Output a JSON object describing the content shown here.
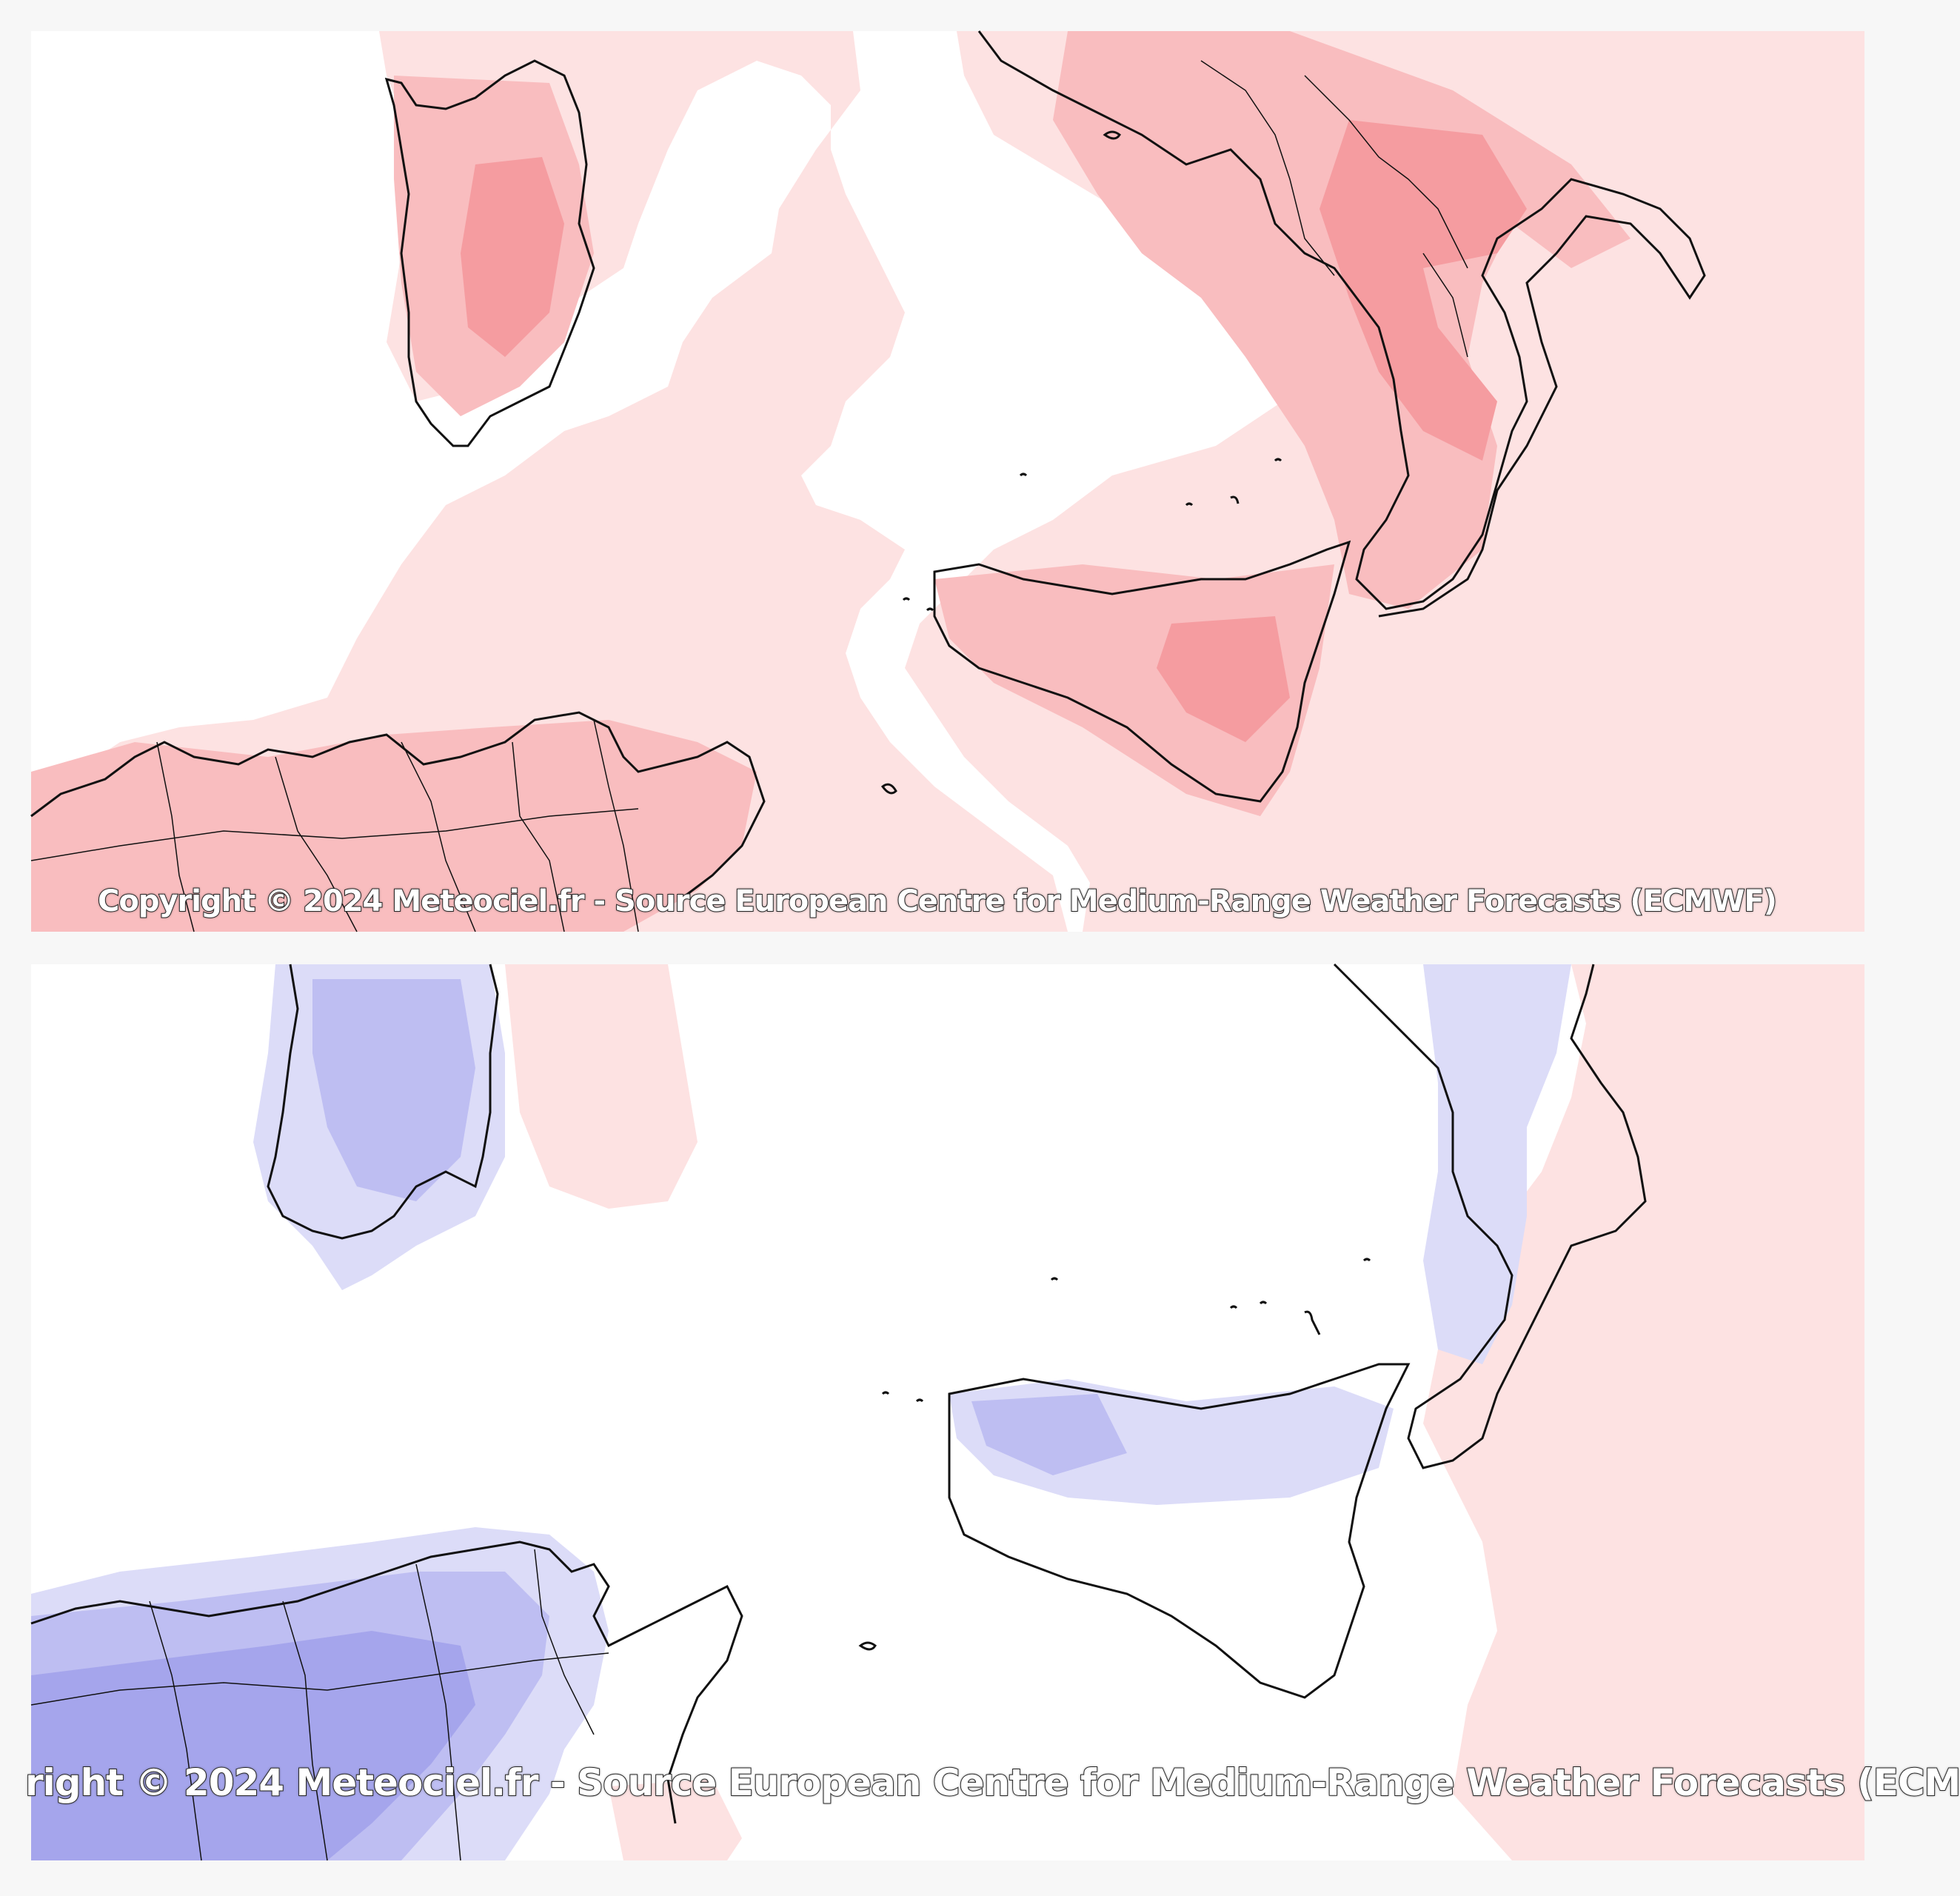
{
  "colors": {
    "sea_background": "#ffffff",
    "warm_light": "#fde2e2",
    "warm_mid": "#f9bdbf",
    "warm_strong": "#f59ca0",
    "cold_light": "#dcdcf8",
    "cold_mid": "#bebef2",
    "cold_strong": "#a5a5ec",
    "coastline": "#111111"
  },
  "maps": [
    {
      "anomaly": "warm",
      "copyright": "Copyright © 2024 Meteociel.fr - Source European Centre for Medium-Range Weather Forecasts (ECMWF)"
    },
    {
      "anomaly": "cold",
      "copyright": "right © 2024 Meteociel.fr - Source European Centre for Medium-Range Weather Forecasts (ECM"
    }
  ]
}
